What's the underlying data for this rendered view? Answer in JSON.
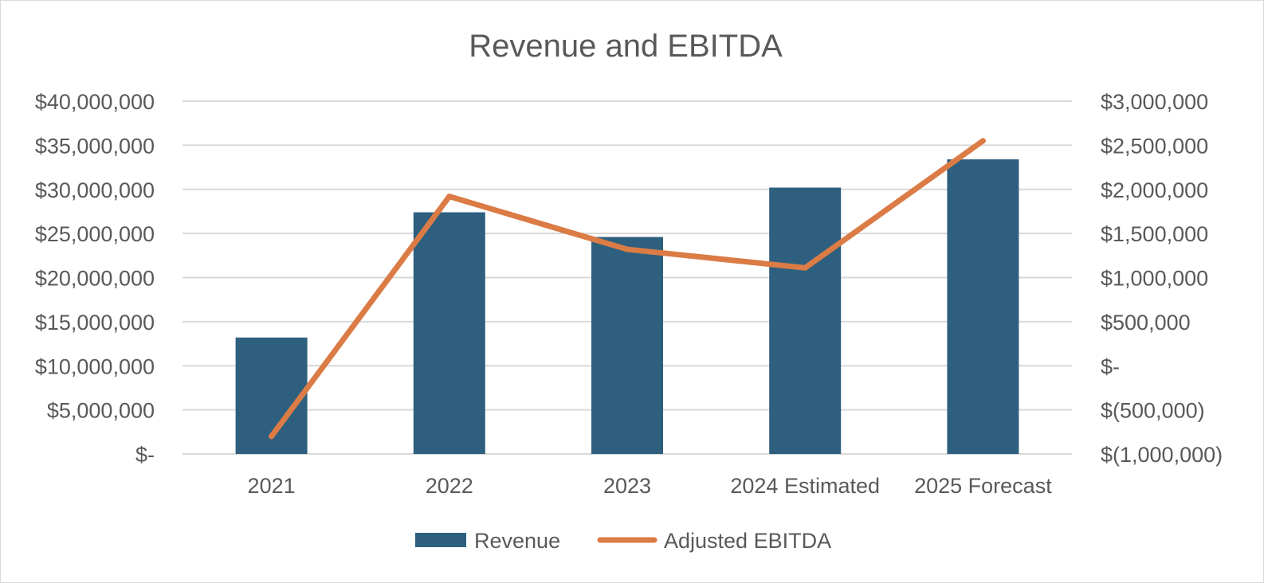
{
  "chart_data": {
    "type": "bar",
    "title": "Revenue and EBITDA",
    "categories": [
      "2021",
      "2022",
      "2023",
      "2024 Estimated",
      "2025 Forecast"
    ],
    "series": [
      {
        "name": "Revenue",
        "type": "bar",
        "axis": "left",
        "color": "#2e5f7f",
        "values": [
          13200000,
          27400000,
          24600000,
          30200000,
          33400000
        ]
      },
      {
        "name": "Adjusted EBITDA",
        "type": "line",
        "axis": "right",
        "color": "#db7b45",
        "values": [
          -800000,
          1920000,
          1320000,
          1110000,
          2550000
        ]
      }
    ],
    "y_left": {
      "min": 0,
      "max": 40000000,
      "step": 5000000,
      "tick_labels": [
        "$-",
        "$5,000,000",
        "$10,000,000",
        "$15,000,000",
        "$20,000,000",
        "$25,000,000",
        "$30,000,000",
        "$35,000,000",
        "$40,000,000"
      ]
    },
    "y_right": {
      "min": -1000000,
      "max": 3000000,
      "step": 500000,
      "tick_labels": [
        "$(1,000,000)",
        "$(500,000)",
        "$-",
        "$500,000",
        "$1,000,000",
        "$1,500,000",
        "$2,000,000",
        "$2,500,000",
        "$3,000,000"
      ]
    },
    "grid": true,
    "legend": "bottom",
    "colors": {
      "gridline": "#d9d9d9",
      "text": "#595959"
    }
  }
}
